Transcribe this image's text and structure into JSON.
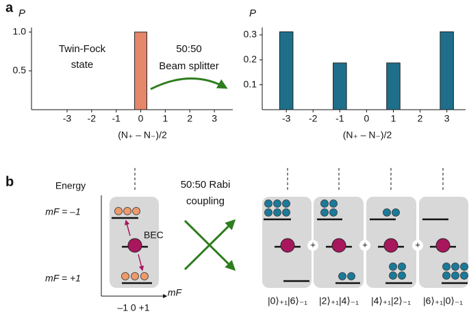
{
  "panel_labels": [
    "a",
    "b"
  ],
  "chart_data": [
    {
      "type": "bar",
      "y_label": "P",
      "x_label": "(N₊ – N₋)/2",
      "x": [
        0
      ],
      "values": [
        1.0
      ],
      "color": "#e5866b",
      "xlim": [
        -4.45,
        3.75
      ],
      "xticks": [
        -3,
        -2,
        -1,
        0,
        1,
        2,
        3
      ],
      "ylim": [
        0,
        1.06
      ],
      "yticks": [
        0.5,
        {
          "value": 1,
          "label": "1.0"
        }
      ],
      "annotations": [
        "Twin-Fock",
        "state",
        "50:50",
        "Beam splitter"
      ]
    },
    {
      "type": "bar",
      "y_label": "P",
      "x_label": "(N₊ – N₋)/2",
      "x": [
        -3,
        -1,
        1,
        3
      ],
      "values": [
        0.3125,
        0.1875,
        0.1875,
        0.3125
      ],
      "color": "#1f6f8b",
      "xlim": [
        -3.9,
        3.7
      ],
      "xticks": [
        -3,
        -2,
        -1,
        0,
        1,
        2,
        3
      ],
      "ylim": [
        0,
        0.33
      ],
      "yticks": [
        0.1,
        0.2,
        0.3
      ]
    }
  ],
  "panel_b": {
    "axis_label": "Energy",
    "levels": [
      "mF = –1",
      "mF = +1"
    ],
    "bec": "BEC",
    "x_axis_label": "mF",
    "x_ticks": "–1 0 +1",
    "coupling": [
      "50:50 Rabi",
      "coupling"
    ],
    "plus_signs": [
      "+",
      "+",
      "+"
    ],
    "states": [
      "|0⟩₊₁|6⟩₋₁",
      "|2⟩₊₁|4⟩₋₁",
      "|4⟩₊₁|2⟩₋₁",
      "|6⟩₊₁|0⟩₋₁"
    ]
  }
}
